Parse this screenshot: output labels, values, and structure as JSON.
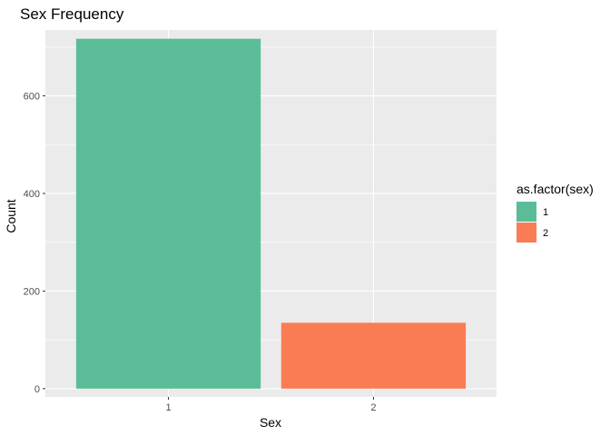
{
  "chart_data": {
    "type": "bar",
    "title": "Sex Frequency",
    "xlabel": "Sex",
    "ylabel": "Count",
    "categories": [
      "1",
      "2"
    ],
    "values": [
      717,
      135
    ],
    "ylim": [
      -17,
      735
    ],
    "yticks": [
      0,
      200,
      400,
      600
    ],
    "ytick_labels": [
      "0",
      "200",
      "400",
      "600"
    ],
    "grid": true,
    "legend": {
      "title": "as.factor(sex)",
      "placement": "right",
      "entries": [
        {
          "label": "1",
          "color": "#5BBD97"
        },
        {
          "label": "2",
          "color": "#FA7C55"
        }
      ]
    },
    "colors": {
      "panel_background": "#EBEBEB",
      "gridline": "#FFFFFF",
      "tick_text": "#4D4D4D",
      "tick_mark": "#333333"
    }
  }
}
